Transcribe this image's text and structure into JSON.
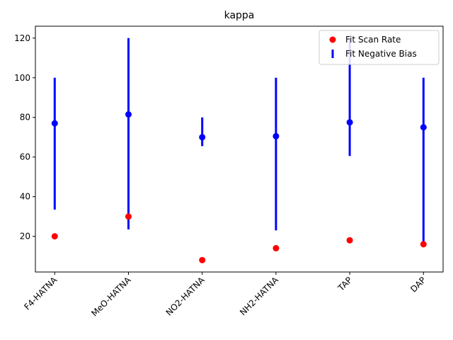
{
  "chart_data": {
    "type": "scatter",
    "title": "kappa",
    "xlabel": "",
    "ylabel": "",
    "categories": [
      "F4-HATNA",
      "MeO-HATNA",
      "NO2-HATNA",
      "NH2-HATNA",
      "TAP",
      "DAP"
    ],
    "ylim": [
      2,
      126
    ],
    "yticks": [
      20,
      40,
      60,
      80,
      100,
      120
    ],
    "grid": false,
    "legend_position": "top-right",
    "series": [
      {
        "name": "Fit Scan Rate",
        "kind": "points",
        "color": "#ff0000",
        "values": [
          20,
          30,
          8,
          14,
          18,
          16
        ]
      },
      {
        "name": "Fit Negative Bias",
        "kind": "errorbar",
        "color": "#0000ff",
        "values": [
          77,
          81.5,
          70,
          70.5,
          77.5,
          75
        ],
        "lower": [
          33.5,
          23.5,
          65.5,
          23,
          60.5,
          14.5
        ],
        "upper": [
          100,
          120,
          80,
          100,
          120,
          100
        ]
      }
    ]
  }
}
